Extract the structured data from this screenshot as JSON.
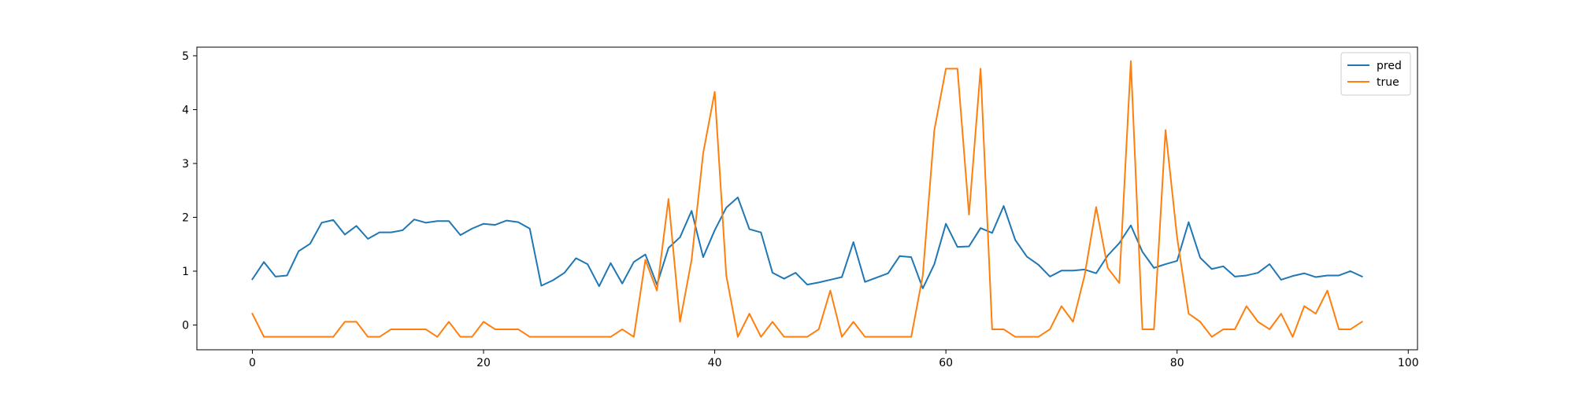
{
  "chart_data": {
    "type": "line",
    "title": "",
    "xlabel": "",
    "ylabel": "",
    "xlim": [
      -4.8,
      100.8
    ],
    "ylim": [
      -0.46,
      5.16
    ],
    "xticks": [
      0,
      20,
      40,
      60,
      80,
      100
    ],
    "yticks": [
      0,
      1,
      2,
      3,
      4,
      5
    ],
    "grid": false,
    "legend": {
      "placement": "top-right"
    },
    "series": [
      {
        "name": "pred",
        "color": "#1f77b4",
        "x": [
          0,
          1,
          2,
          3,
          4,
          5,
          6,
          7,
          8,
          9,
          10,
          11,
          12,
          13,
          14,
          15,
          16,
          17,
          18,
          19,
          20,
          21,
          22,
          23,
          24,
          25,
          26,
          27,
          28,
          29,
          30,
          31,
          32,
          33,
          34,
          35,
          36,
          37,
          38,
          39,
          40,
          41,
          42,
          43,
          44,
          45,
          46,
          47,
          48,
          49,
          50,
          51,
          52,
          53,
          54,
          55,
          56,
          57,
          58,
          59,
          60,
          61,
          62,
          63,
          64,
          65,
          66,
          67,
          68,
          69,
          70,
          71,
          72,
          73,
          74,
          75,
          76,
          77,
          78,
          79,
          80,
          81,
          82,
          83,
          84,
          85,
          86,
          87,
          88,
          89,
          90,
          91,
          92,
          93,
          94,
          95,
          96
        ],
        "y": [
          0.85,
          1.17,
          0.9,
          0.92,
          1.37,
          1.51,
          1.9,
          1.95,
          1.68,
          1.84,
          1.6,
          1.72,
          1.72,
          1.76,
          1.96,
          1.9,
          1.93,
          1.93,
          1.67,
          1.79,
          1.88,
          1.86,
          1.94,
          1.91,
          1.79,
          0.73,
          0.83,
          0.97,
          1.24,
          1.13,
          0.72,
          1.15,
          0.77,
          1.17,
          1.31,
          0.75,
          1.43,
          1.63,
          2.12,
          1.26,
          1.76,
          2.18,
          2.37,
          1.78,
          1.72,
          0.97,
          0.86,
          0.97,
          0.75,
          0.79,
          0.84,
          0.89,
          1.54,
          0.8,
          0.88,
          0.96,
          1.28,
          1.26,
          0.68,
          1.13,
          1.88,
          1.45,
          1.46,
          1.8,
          1.71,
          2.21,
          1.58,
          1.27,
          1.12,
          0.9,
          1.01,
          1.01,
          1.03,
          0.96,
          1.29,
          1.52,
          1.85,
          1.36,
          1.06,
          1.13,
          1.19,
          1.91,
          1.25,
          1.04,
          1.09,
          0.9,
          0.92,
          0.97,
          1.13,
          0.84,
          0.91,
          0.96,
          0.89,
          0.92,
          0.92,
          1.0,
          0.9
        ]
      },
      {
        "name": "true",
        "color": "#ff7f0e",
        "x": [
          0,
          1,
          2,
          3,
          4,
          5,
          6,
          7,
          8,
          9,
          10,
          11,
          12,
          13,
          14,
          15,
          16,
          17,
          18,
          19,
          20,
          21,
          22,
          23,
          24,
          25,
          26,
          27,
          28,
          29,
          30,
          31,
          32,
          33,
          34,
          35,
          36,
          37,
          38,
          39,
          40,
          41,
          42,
          43,
          44,
          45,
          46,
          47,
          48,
          49,
          50,
          51,
          52,
          53,
          54,
          55,
          56,
          57,
          58,
          59,
          60,
          61,
          62,
          63,
          64,
          65,
          66,
          67,
          68,
          69,
          70,
          71,
          72,
          73,
          74,
          75,
          76,
          77,
          78,
          79,
          80,
          81,
          82,
          83,
          84,
          85,
          86,
          87,
          88,
          89,
          90,
          91,
          92,
          93,
          94,
          95,
          96
        ],
        "y": [
          0.21,
          -0.22,
          -0.22,
          -0.22,
          -0.22,
          -0.22,
          -0.22,
          -0.22,
          0.06,
          0.06,
          -0.22,
          -0.22,
          -0.08,
          -0.08,
          -0.08,
          -0.08,
          -0.22,
          0.06,
          -0.22,
          -0.22,
          0.06,
          -0.08,
          -0.08,
          -0.08,
          -0.22,
          -0.22,
          -0.22,
          -0.22,
          -0.22,
          -0.22,
          -0.22,
          -0.22,
          -0.08,
          -0.22,
          1.21,
          0.64,
          2.34,
          0.06,
          1.21,
          3.19,
          4.33,
          0.92,
          -0.22,
          0.21,
          -0.22,
          0.06,
          -0.22,
          -0.22,
          -0.22,
          -0.08,
          0.64,
          -0.22,
          0.06,
          -0.22,
          -0.22,
          -0.22,
          -0.22,
          -0.22,
          0.92,
          3.62,
          4.76,
          4.76,
          2.05,
          4.76,
          -0.08,
          -0.08,
          -0.22,
          -0.22,
          -0.22,
          -0.08,
          0.35,
          0.06,
          0.92,
          2.19,
          1.06,
          0.78,
          4.9,
          -0.08,
          -0.08,
          3.62,
          1.63,
          0.21,
          0.06,
          -0.22,
          -0.08,
          -0.08,
          0.35,
          0.06,
          -0.08,
          0.21,
          -0.22,
          0.35,
          0.21,
          0.64,
          -0.08,
          -0.08,
          0.06
        ]
      }
    ]
  }
}
